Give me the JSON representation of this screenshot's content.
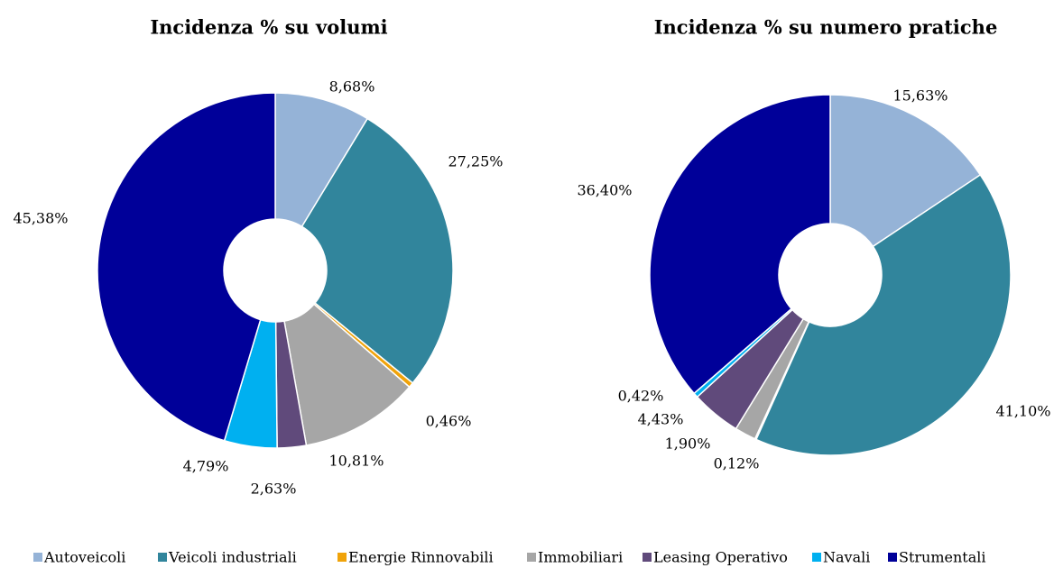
{
  "chart_data": [
    {
      "type": "donut",
      "title": "Incidenza % su volumi",
      "categories": [
        "Autoveicoli",
        "Veicoli industriali",
        "Energie Rinnovabili",
        "Immobiliari",
        "Leasing Operativo",
        "Navali",
        "Strumentali"
      ],
      "values": [
        8.68,
        27.25,
        0.46,
        10.81,
        2.63,
        4.79,
        45.38
      ],
      "value_labels": [
        "8,68%",
        "27,25%",
        "0,46%",
        "10,81%",
        "2,63%",
        "4,79%",
        "45,38%"
      ],
      "colors": [
        "#95b3d7",
        "#31859c",
        "#f0a30a",
        "#a6a6a6",
        "#604a7b",
        "#00b0f0",
        "#000099"
      ]
    },
    {
      "type": "donut",
      "title": "Incidenza % su numero pratiche",
      "categories": [
        "Autoveicoli",
        "Veicoli industriali",
        "Energie Rinnovabili",
        "Immobiliari",
        "Leasing Operativo",
        "Navali",
        "Strumentali"
      ],
      "values": [
        15.63,
        41.1,
        0.12,
        1.9,
        4.43,
        0.42,
        36.4
      ],
      "value_labels": [
        "15,63%",
        "41,10%",
        "0,12%",
        "1,90%",
        "4,43%",
        "0,42%",
        "36,40%"
      ],
      "colors": [
        "#95b3d7",
        "#31859c",
        "#f0a30a",
        "#a6a6a6",
        "#604a7b",
        "#00b0f0",
        "#000099"
      ]
    }
  ]
}
